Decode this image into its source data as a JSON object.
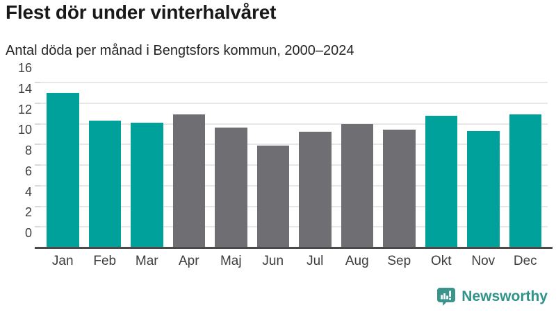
{
  "header": {
    "title": "Flest dör under vinterhalvåret",
    "subtitle": "Antal döda per månad i Bengtsfors kommun, 2000–2024"
  },
  "chart_data": {
    "type": "bar",
    "categories": [
      "Jan",
      "Feb",
      "Mar",
      "Apr",
      "Maj",
      "Jun",
      "Jul",
      "Aug",
      "Sep",
      "Okt",
      "Nov",
      "Dec"
    ],
    "values": [
      15.0,
      12.3,
      12.1,
      12.9,
      11.6,
      9.9,
      11.2,
      12.0,
      11.4,
      12.8,
      11.3,
      12.9
    ],
    "highlighted_categories": [
      "Jan",
      "Feb",
      "Mar",
      "Okt",
      "Nov",
      "Dec"
    ],
    "title": "Flest dör under vinterhalvåret",
    "subtitle": "Antal döda per månad i Bengtsfors kommun, 2000–2024",
    "xlabel": "",
    "ylabel": "",
    "ylim": [
      0,
      16
    ],
    "yticks": [
      0,
      2,
      4,
      6,
      8,
      10,
      12,
      14,
      16
    ],
    "grid": true,
    "legend": false,
    "colors": {
      "highlight_bar": "#00a19a",
      "default_bar": "#6e6e73",
      "gridline": "#e7e7e7",
      "axis_line": "#4a4a4b"
    }
  },
  "footer": {
    "brand": "Newsworthy",
    "logo_color": "#3a948b"
  }
}
